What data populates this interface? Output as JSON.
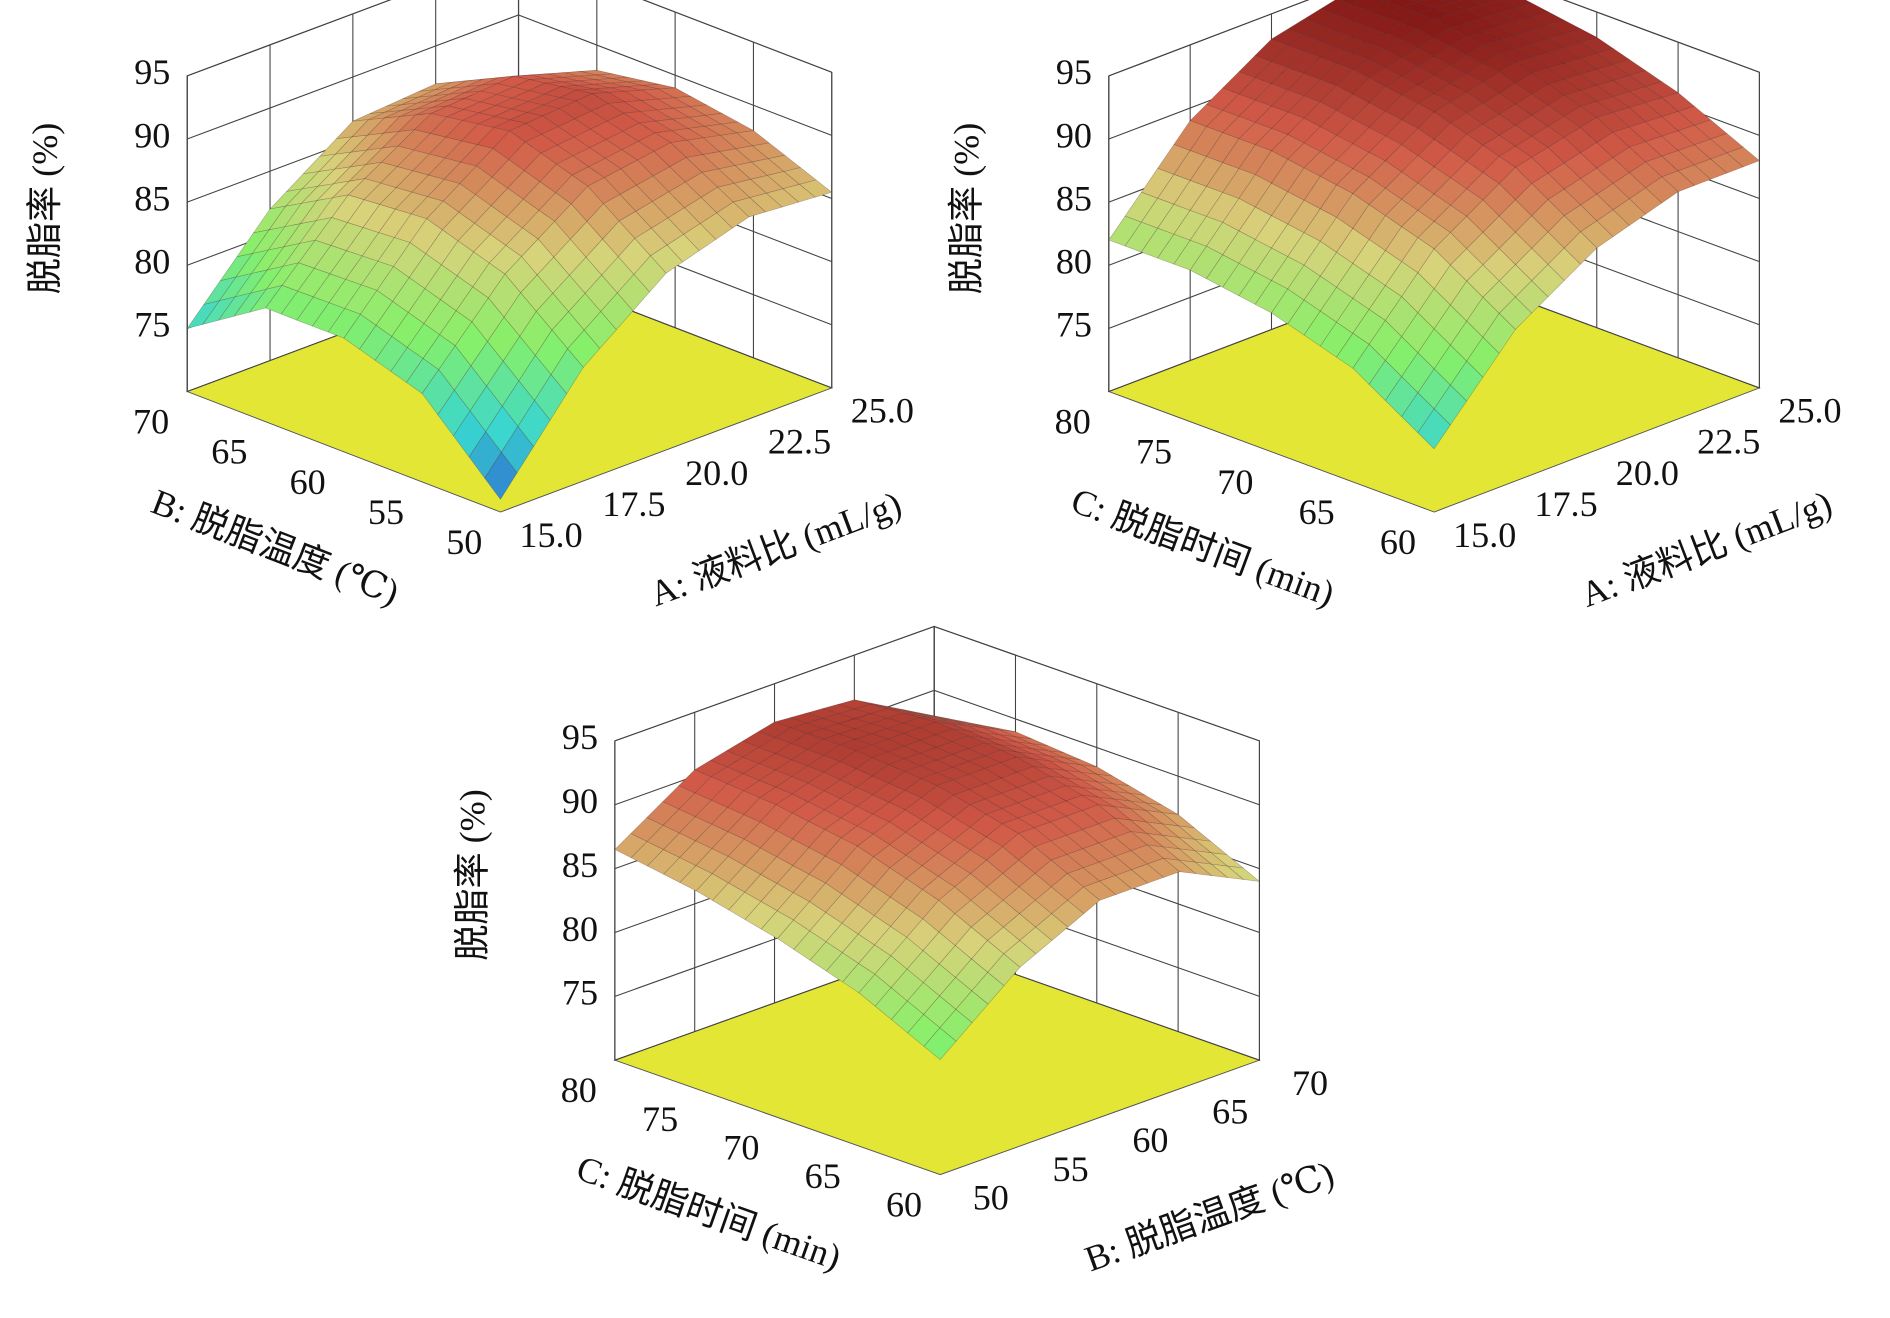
{
  "chart_data": [
    {
      "type": "surface",
      "zlabel": "脱脂率 (%)",
      "xlabel": "A: 液料比 (mL/g)",
      "ylabel": "B: 脱脂温度 (℃)",
      "x": [
        15,
        17.5,
        20,
        22.5,
        25
      ],
      "y": [
        50,
        55,
        60,
        65,
        70
      ],
      "z": [
        [
          71,
          79,
          84,
          86,
          85.5
        ],
        [
          77,
          84,
          88.5,
          89.5,
          88
        ],
        [
          79,
          86,
          90.5,
          91,
          89
        ],
        [
          79,
          85.5,
          89.5,
          90,
          88
        ],
        [
          75,
          82,
          86.5,
          87,
          85
        ]
      ],
      "xlim": [
        15,
        25
      ],
      "xticks": [
        {
          "value": 15,
          "label": "15.0"
        },
        17.5,
        {
          "value": 20,
          "label": "20.0"
        },
        22.5,
        {
          "value": 25,
          "label": "25.0"
        }
      ],
      "ylim": [
        50,
        70
      ],
      "yticks": [
        50,
        55,
        60,
        65,
        70
      ],
      "zlim": [
        70,
        95
      ],
      "zticks": [
        75,
        80,
        85,
        90,
        95
      ],
      "grid": true,
      "floor_color": "#e4e636",
      "colorscale": [
        "#2a4fd0",
        "#39d6d0",
        "#86f06a",
        "#d8d27a",
        "#d25a48",
        "#7a1010"
      ]
    },
    {
      "type": "surface",
      "zlabel": "脱脂率 (%)",
      "xlabel": "A: 液料比 (mL/g)",
      "ylabel": "C: 脱脂时间 (min)",
      "x": [
        15,
        17.5,
        20,
        22.5,
        25
      ],
      "y": [
        60,
        65,
        70,
        75,
        80
      ],
      "z": [
        [
          75,
          82,
          86,
          88,
          88
        ],
        [
          79,
          86,
          90,
          91.5,
          91
        ],
        [
          81,
          88,
          92,
          93.5,
          93
        ],
        [
          82,
          89,
          93,
          94.5,
          94
        ],
        [
          82,
          89,
          93,
          94.5,
          94
        ]
      ],
      "xlim": [
        15,
        25
      ],
      "xticks": [
        {
          "value": 15,
          "label": "15.0"
        },
        17.5,
        {
          "value": 20,
          "label": "20.0"
        },
        22.5,
        {
          "value": 25,
          "label": "25.0"
        }
      ],
      "ylim": [
        60,
        80
      ],
      "yticks": [
        60,
        65,
        70,
        75,
        80
      ],
      "zlim": [
        70,
        95
      ],
      "zticks": [
        75,
        80,
        85,
        90,
        95
      ],
      "grid": true,
      "floor_color": "#e4e636",
      "colorscale": [
        "#2a4fd0",
        "#39d6d0",
        "#86f06a",
        "#d8d27a",
        "#d25a48",
        "#7a1010"
      ]
    },
    {
      "type": "surface",
      "zlabel": "脱脂率 (%)",
      "xlabel": "B: 脱脂温度 (℃)",
      "ylabel": "C: 脱脂时间 (min)",
      "x": [
        50,
        55,
        60,
        65,
        70
      ],
      "y": [
        60,
        65,
        70,
        75,
        80
      ],
      "z": [
        [
          79,
          84,
          87,
          87,
          84
        ],
        [
          82,
          87,
          90,
          90,
          87
        ],
        [
          84,
          89,
          91.5,
          91.5,
          88.5
        ],
        [
          85.5,
          90,
          92,
          92,
          89
        ],
        [
          86.5,
          90.5,
          92,
          91.5,
          88
        ]
      ],
      "xlim": [
        50,
        70
      ],
      "xticks": [
        50,
        55,
        60,
        65,
        70
      ],
      "ylim": [
        60,
        80
      ],
      "yticks": [
        60,
        65,
        70,
        75,
        80
      ],
      "zlim": [
        70,
        95
      ],
      "zticks": [
        75,
        80,
        85,
        90,
        95
      ],
      "grid": true,
      "floor_color": "#e4e636",
      "colorscale": [
        "#2a4fd0",
        "#39d6d0",
        "#86f06a",
        "#d8d27a",
        "#d25a48",
        "#7a1010"
      ]
    }
  ]
}
